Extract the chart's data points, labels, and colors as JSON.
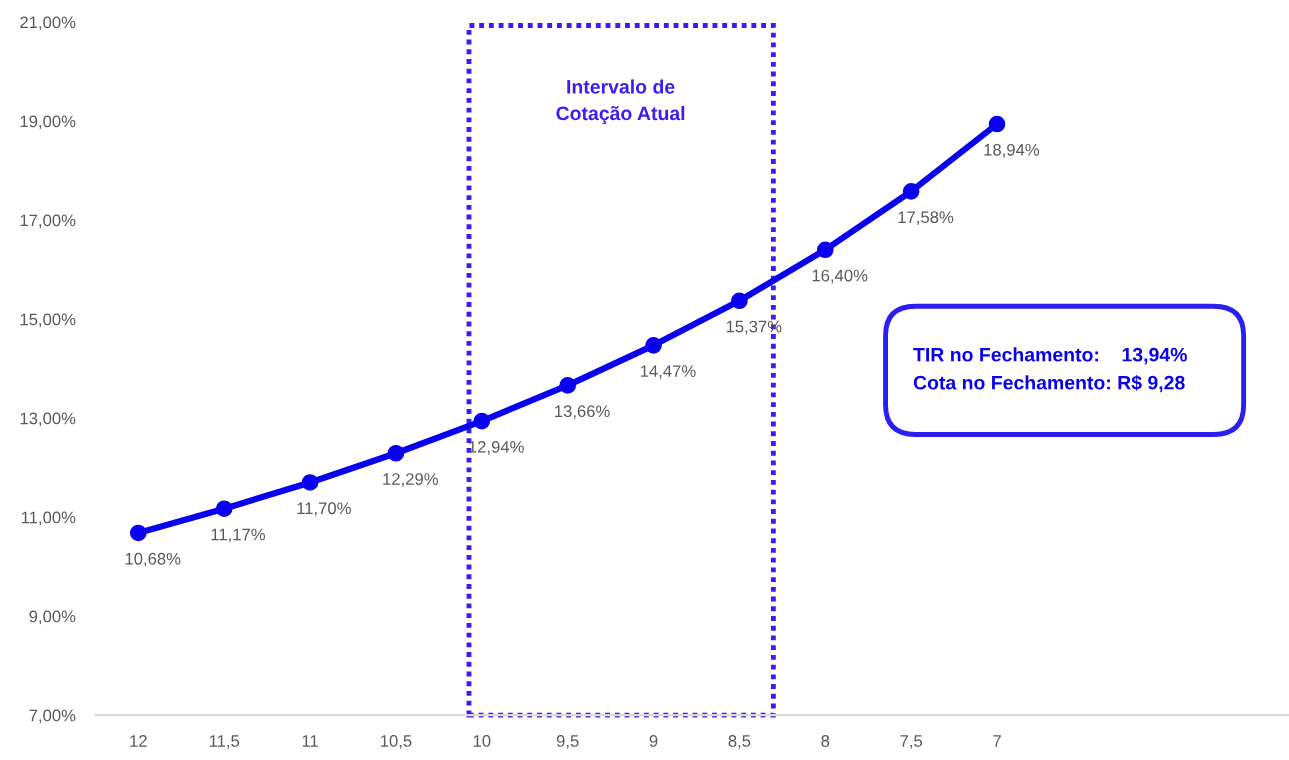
{
  "chart_data": {
    "type": "line",
    "categories": [
      "12",
      "11,5",
      "11",
      "10,5",
      "10",
      "9,5",
      "9",
      "8,5",
      "8",
      "7,5",
      "7"
    ],
    "series": [
      {
        "color": "#0a00f0",
        "values": [
          10.68,
          11.17,
          11.7,
          12.29,
          12.94,
          13.66,
          14.47,
          15.37,
          16.4,
          17.58,
          18.94
        ],
        "value_labels": [
          "10,68%",
          "11,17%",
          "11,70%",
          "12,29%",
          "12,94%",
          "13,66%",
          "14,47%",
          "15,37%",
          "16,40%",
          "17,58%",
          "18,94%"
        ]
      }
    ],
    "ylim": [
      7,
      21
    ],
    "yticks": [
      {
        "value": 7,
        "label": "7,00%"
      },
      {
        "value": 9,
        "label": "9,00%"
      },
      {
        "value": 11,
        "label": "11,00%"
      },
      {
        "value": 13,
        "label": "13,00%"
      },
      {
        "value": 15,
        "label": "15,00%"
      },
      {
        "value": 17,
        "label": "17,00%"
      },
      {
        "value": 19,
        "label": "19,00%"
      },
      {
        "value": 21,
        "label": "21,00%"
      }
    ],
    "marker": "circle",
    "line_style": "solid",
    "grid": false,
    "legend": false,
    "annotations": [
      "Intervalo de\nCotação Atual",
      "TIR no Fechamento:    13,94%\nCota no Fechamento: R$ 9,28"
    ]
  }
}
